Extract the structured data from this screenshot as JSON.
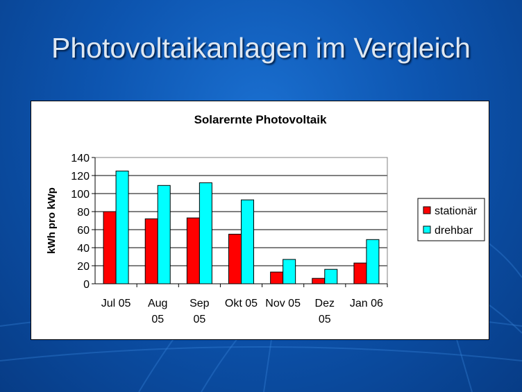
{
  "slide": {
    "title": "Photovoltaikanlagen im Vergleich"
  },
  "chart_data": {
    "type": "bar",
    "title": "Solarernte Photovoltaik",
    "xlabel": "",
    "ylabel": "kWh pro kWp",
    "ylim": [
      0,
      140
    ],
    "yticks": [
      0,
      20,
      40,
      60,
      80,
      100,
      120,
      140
    ],
    "grid": true,
    "legend_position": "right",
    "categories": [
      [
        "Jul 05"
      ],
      [
        "Aug",
        "05"
      ],
      [
        "Sep",
        "05"
      ],
      [
        "Okt 05"
      ],
      [
        "Nov 05"
      ],
      [
        "Dez",
        "05"
      ],
      [
        "Jan 06"
      ]
    ],
    "series": [
      {
        "name": "stationär",
        "color": "#ff0000",
        "values": [
          80,
          72,
          73,
          55,
          13,
          6,
          23
        ]
      },
      {
        "name": "drehbar",
        "color": "#00ffff",
        "values": [
          125,
          109,
          112,
          93,
          27,
          16,
          49
        ]
      }
    ]
  }
}
